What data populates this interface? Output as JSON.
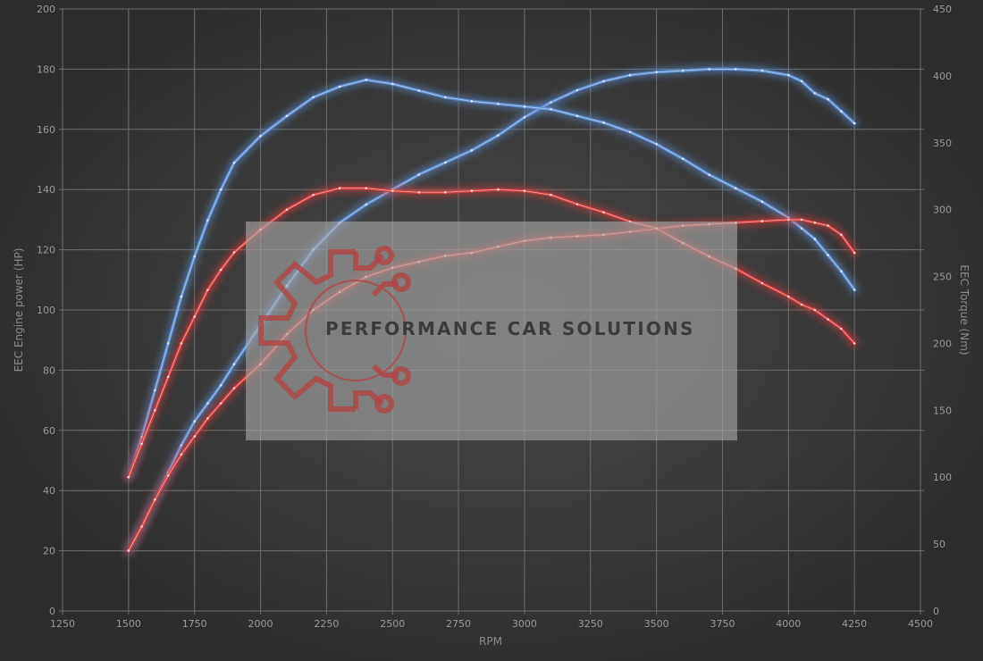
{
  "chart_data": {
    "type": "line",
    "title": "",
    "xlabel": "RPM",
    "ylabel_left": "EEC Engine power (HP)",
    "ylabel_right": "EEC Torque (Nm)",
    "xlim": [
      1250,
      4500
    ],
    "ylim_left": [
      0,
      200
    ],
    "ylim_right": [
      0,
      450
    ],
    "x_ticks": [
      "1250",
      "1500",
      "1750",
      "2000",
      "2250",
      "2500",
      "2750",
      "3000",
      "3250",
      "3500",
      "3750",
      "4000",
      "4250",
      "4500"
    ],
    "y_left_ticks": [
      "0",
      "20",
      "40",
      "60",
      "80",
      "100",
      "120",
      "140",
      "160",
      "180",
      "200"
    ],
    "y_right_ticks": [
      "0",
      "50",
      "100",
      "150",
      "200",
      "250",
      "300",
      "350",
      "400",
      "450"
    ],
    "grid": true,
    "legend": "none",
    "series": [
      {
        "key": "tuned_power",
        "axis": "left",
        "color": "#5b8fd6",
        "x": [
          1500,
          1550,
          1600,
          1650,
          1700,
          1750,
          1800,
          1850,
          1900,
          2000,
          2100,
          2200,
          2300,
          2400,
          2500,
          2600,
          2700,
          2800,
          2900,
          3000,
          3100,
          3200,
          3300,
          3400,
          3500,
          3600,
          3700,
          3800,
          3900,
          4000,
          4050,
          4100,
          4150,
          4200,
          4250
        ],
        "y": [
          20,
          28,
          37,
          46,
          55,
          63,
          69,
          75,
          82,
          95,
          108,
          120,
          129,
          135,
          140,
          145,
          149,
          153,
          158,
          164,
          169,
          173,
          176,
          178,
          179,
          179.5,
          180,
          180,
          179.5,
          178,
          176,
          172,
          170,
          166,
          162
        ]
      },
      {
        "key": "tuned_torque",
        "axis": "right",
        "color": "#5b8fd6",
        "x": [
          1500,
          1550,
          1600,
          1650,
          1700,
          1750,
          1800,
          1850,
          1900,
          2000,
          2100,
          2200,
          2300,
          2400,
          2500,
          2600,
          2700,
          2800,
          2900,
          3000,
          3100,
          3200,
          3300,
          3400,
          3500,
          3600,
          3700,
          3800,
          3900,
          4000,
          4050,
          4100,
          4150,
          4200,
          4250
        ],
        "y": [
          100,
          130,
          165,
          200,
          235,
          265,
          292,
          315,
          335,
          355,
          370,
          384,
          392,
          397,
          394,
          389,
          384,
          381,
          379,
          377,
          375,
          370,
          365,
          358,
          349,
          338,
          326,
          316,
          306,
          294,
          286,
          278,
          266,
          254,
          240
        ]
      },
      {
        "key": "stock_power",
        "axis": "left",
        "color": "#d63a3a",
        "x": [
          1500,
          1550,
          1600,
          1650,
          1700,
          1750,
          1800,
          1850,
          1900,
          2000,
          2100,
          2200,
          2300,
          2400,
          2500,
          2600,
          2700,
          2800,
          2900,
          3000,
          3100,
          3200,
          3300,
          3400,
          3500,
          3600,
          3700,
          3800,
          3900,
          4000,
          4050,
          4100,
          4150,
          4200,
          4250
        ],
        "y": [
          20,
          28,
          37,
          45,
          52,
          58,
          64,
          69,
          74,
          82,
          92,
          100,
          106,
          111,
          114,
          116,
          118,
          119,
          121,
          123,
          124,
          124.5,
          125,
          126,
          127,
          128,
          128.5,
          129,
          129.5,
          130,
          130,
          129,
          128,
          125,
          119
        ]
      },
      {
        "key": "stock_torque",
        "axis": "right",
        "color": "#d63a3a",
        "x": [
          1500,
          1550,
          1600,
          1650,
          1700,
          1750,
          1800,
          1850,
          1900,
          2000,
          2100,
          2200,
          2300,
          2400,
          2500,
          2600,
          2700,
          2800,
          2900,
          3000,
          3100,
          3200,
          3300,
          3400,
          3500,
          3600,
          3700,
          3800,
          3900,
          4000,
          4050,
          4100,
          4150,
          4200,
          4250
        ],
        "y": [
          100,
          125,
          150,
          175,
          200,
          220,
          240,
          255,
          268,
          285,
          300,
          311,
          316,
          316,
          314,
          313,
          313,
          314,
          315,
          314,
          311,
          304,
          298,
          291,
          286,
          275,
          265,
          256,
          245,
          235,
          229,
          225,
          218,
          211,
          200
        ]
      }
    ]
  },
  "watermark": {
    "text": "PERFORMANCE CAR SOLUTIONS",
    "logo_icon": "gear-circuit-logo"
  }
}
